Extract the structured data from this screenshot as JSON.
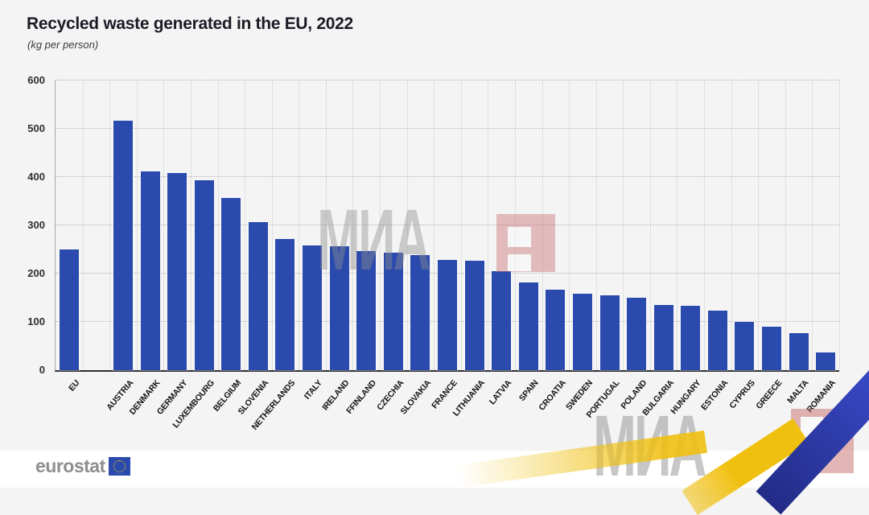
{
  "header": {
    "title": "Recycled waste generated in the EU, 2022",
    "subtitle": "(kg per person)"
  },
  "chart_data": {
    "type": "bar",
    "title": "Recycled waste generated in the EU, 2022",
    "subtitle": "(kg per person)",
    "ylabel": "kg per person",
    "ylim": [
      0,
      600
    ],
    "yticks": [
      0,
      100,
      200,
      300,
      400,
      500,
      600
    ],
    "grid": "horizontal-dotted",
    "legend": "none",
    "gap_after_first_bar": true,
    "categories": [
      "EU",
      "AUSTRIA",
      "DENMARK",
      "GERMANY",
      "LUXEMBOURG",
      "BELGIUM",
      "SLOVENIA",
      "NETHERLANDS",
      "ITALY",
      "IRELAND",
      "FFINLAND",
      "CZECHIA",
      "SLOVAKIA",
      "FRANCE",
      "LITHUANIA",
      "LATVIA",
      "SPAIN",
      "CROATIA",
      "SWEDEN",
      "PORTUGAL",
      "POLAND",
      "BULGARIA",
      "HUNGARY",
      "ESTONIA",
      "CYPRUS",
      "GREECE",
      "MALTA",
      "ROMANIA"
    ],
    "values": [
      250,
      517,
      411,
      409,
      393,
      357,
      306,
      272,
      258,
      256,
      246,
      244,
      238,
      228,
      226,
      205,
      182,
      166,
      158,
      155,
      150,
      135,
      134,
      123,
      100,
      90,
      76,
      37
    ]
  },
  "watermarks": {
    "center_text": "МИА",
    "bottom_text": "МИА"
  },
  "footer": {
    "brand": "eurostat"
  },
  "colors": {
    "bar": "#2b4aad",
    "background": "#f4f4f4",
    "footer_background": "#ffffff",
    "gridline": "#b3b3b3",
    "watermark_gray": "#9a9a9a",
    "watermark_pink": "#c96f6f",
    "ribbon_yellow": "#f0c011",
    "ribbon_blue": "#2c3cae",
    "eu_flag_blue": "#2a4aad",
    "eu_star_yellow": "#f8c301"
  }
}
